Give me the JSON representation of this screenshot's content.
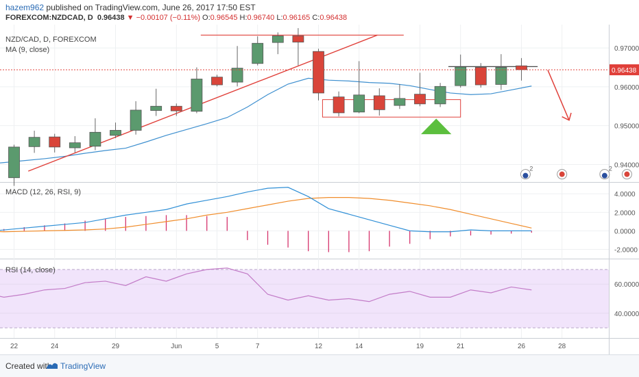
{
  "header": {
    "user": "hazem962",
    "published": "published on TradingView.com, June 26, 2017 17:50 EST",
    "symbol": "FOREXCOM:NZDCAD, D",
    "price": "0.96438",
    "change": "▼ −0.00107 (−0.11%)",
    "o_label": "O:",
    "o_val": "0.96545",
    "h_label": "H:",
    "h_val": "0.96740",
    "l_label": "L:",
    "l_val": "0.96165",
    "c_label": "C:",
    "c_val": "0.96438"
  },
  "footer": {
    "created_with": "Created with",
    "brand": "TradingView"
  },
  "colors": {
    "up": "#5b9a6e",
    "down": "#d9453a",
    "ma": "#3d8fcf",
    "macd": "#2f8fd6",
    "signal": "#f08c2a",
    "hist": "#d6336c",
    "rsi": "#c27bc7",
    "rsi_band": "#f1e4fb",
    "drawing": "#e0403a",
    "triangle": "#5cbf3e"
  },
  "chart_data": [
    {
      "type": "candlestick",
      "title": "NZD/CAD, D, FOREXCOM",
      "indicator": "MA (9, close)",
      "ylim": [
        0.9355,
        0.976
      ],
      "y_ticks": [
        "0.97000",
        "0.96000",
        "0.95000",
        "0.94000"
      ],
      "last_price": 0.96438,
      "last_price_label": "0.96438",
      "x_tick_labels": [
        "22",
        "24",
        "29",
        "Jun",
        "5",
        "7",
        "12",
        "14",
        "19",
        "21",
        "26",
        "28"
      ],
      "candles": [
        {
          "o": 0.9366,
          "h": 0.9451,
          "l": 0.9345,
          "c": 0.9445
        },
        {
          "o": 0.9446,
          "h": 0.9487,
          "l": 0.943,
          "c": 0.947
        },
        {
          "o": 0.9471,
          "h": 0.9479,
          "l": 0.9431,
          "c": 0.9445
        },
        {
          "o": 0.9443,
          "h": 0.9473,
          "l": 0.9431,
          "c": 0.9456
        },
        {
          "o": 0.9447,
          "h": 0.9519,
          "l": 0.9437,
          "c": 0.9483
        },
        {
          "o": 0.9475,
          "h": 0.9508,
          "l": 0.9468,
          "c": 0.9488
        },
        {
          "o": 0.9488,
          "h": 0.9563,
          "l": 0.9477,
          "c": 0.954
        },
        {
          "o": 0.9539,
          "h": 0.9595,
          "l": 0.9525,
          "c": 0.955
        },
        {
          "o": 0.955,
          "h": 0.9557,
          "l": 0.9525,
          "c": 0.9538
        },
        {
          "o": 0.9537,
          "h": 0.965,
          "l": 0.9532,
          "c": 0.962
        },
        {
          "o": 0.9625,
          "h": 0.9631,
          "l": 0.9601,
          "c": 0.9605
        },
        {
          "o": 0.9612,
          "h": 0.9705,
          "l": 0.9601,
          "c": 0.9648
        },
        {
          "o": 0.966,
          "h": 0.973,
          "l": 0.9655,
          "c": 0.9712
        },
        {
          "o": 0.9714,
          "h": 0.974,
          "l": 0.9684,
          "c": 0.9731
        },
        {
          "o": 0.9731,
          "h": 0.9751,
          "l": 0.9655,
          "c": 0.9715
        },
        {
          "o": 0.9691,
          "h": 0.9698,
          "l": 0.9565,
          "c": 0.9584
        },
        {
          "o": 0.9574,
          "h": 0.9588,
          "l": 0.9524,
          "c": 0.9533
        },
        {
          "o": 0.9535,
          "h": 0.9666,
          "l": 0.9532,
          "c": 0.9579
        },
        {
          "o": 0.9577,
          "h": 0.9596,
          "l": 0.9526,
          "c": 0.9541
        },
        {
          "o": 0.9552,
          "h": 0.9607,
          "l": 0.9543,
          "c": 0.957
        },
        {
          "o": 0.9581,
          "h": 0.9636,
          "l": 0.955,
          "c": 0.9556
        },
        {
          "o": 0.9556,
          "h": 0.961,
          "l": 0.9548,
          "c": 0.9601
        },
        {
          "o": 0.9603,
          "h": 0.9683,
          "l": 0.9598,
          "c": 0.9651
        },
        {
          "o": 0.965,
          "h": 0.9661,
          "l": 0.9598,
          "c": 0.9605
        },
        {
          "o": 0.9606,
          "h": 0.9684,
          "l": 0.9592,
          "c": 0.965
        },
        {
          "o": 0.9654,
          "h": 0.9674,
          "l": 0.9616,
          "c": 0.9644
        }
      ],
      "ma": [
        0.9395,
        0.94,
        0.9405,
        0.941,
        0.9415,
        0.9421,
        0.9429,
        0.9436,
        0.9442,
        0.9458,
        0.9475,
        0.949,
        0.9505,
        0.9521,
        0.9548,
        0.958,
        0.9607,
        0.9622,
        0.9617,
        0.9615,
        0.9611,
        0.9609,
        0.9603,
        0.9593,
        0.9584,
        0.958,
        0.9582,
        0.9592,
        0.9602
      ]
    },
    {
      "type": "line",
      "title": "MACD (12, 26, RSI, 9)",
      "ylim": [
        -3.0,
        5.2
      ],
      "y_ticks": [
        "4.0000",
        "2.0000",
        "0.0000",
        "-2.0000"
      ],
      "series": [
        {
          "values": [
            -0.3,
            -0.1,
            0.1,
            0.3,
            0.5,
            0.7,
            0.9,
            1.3,
            1.7,
            2.0,
            2.3,
            2.9,
            3.3,
            3.7,
            4.2,
            4.6,
            4.7,
            3.7,
            2.4,
            1.8,
            1.2,
            0.6,
            0.0,
            -0.1,
            -0.1,
            0.1,
            0.0,
            0.0,
            0.0
          ]
        },
        {
          "values": [
            0.2,
            0.0,
            -0.1,
            -0.05,
            0.0,
            0.05,
            0.1,
            0.2,
            0.4,
            0.7,
            1.0,
            1.3,
            1.7,
            2.0,
            2.4,
            2.8,
            3.2,
            3.5,
            3.6,
            3.6,
            3.5,
            3.3,
            3.0,
            2.7,
            2.3,
            1.8,
            1.3,
            0.8,
            0.3
          ]
        }
      ],
      "histogram": [
        -0.2,
        0.0,
        0.2,
        0.4,
        0.6,
        0.8,
        1.1,
        1.3,
        1.5,
        1.6,
        1.7,
        1.7,
        1.6,
        1.5,
        -1.0,
        -1.5,
        -1.8,
        -2.2,
        -2.3,
        -2.3,
        -2.2,
        -1.7,
        -1.4,
        -0.9,
        -0.6,
        -0.5,
        -0.4,
        -0.3,
        -0.2
      ]
    },
    {
      "type": "line",
      "title": "RSI (14, close)",
      "ylim": [
        23,
        77
      ],
      "y_ticks": [
        "60.0000",
        "40.0000"
      ],
      "bands": [
        30,
        70
      ],
      "values": [
        52,
        54,
        51,
        53,
        56,
        57,
        61,
        62,
        59,
        65,
        62,
        67,
        70,
        71,
        67,
        53,
        49,
        52,
        49,
        50,
        48,
        53,
        55,
        51,
        51,
        56,
        54,
        58,
        56
      ]
    }
  ],
  "annotations": {
    "bubbles": [
      "2",
      "2",
      "2"
    ]
  }
}
